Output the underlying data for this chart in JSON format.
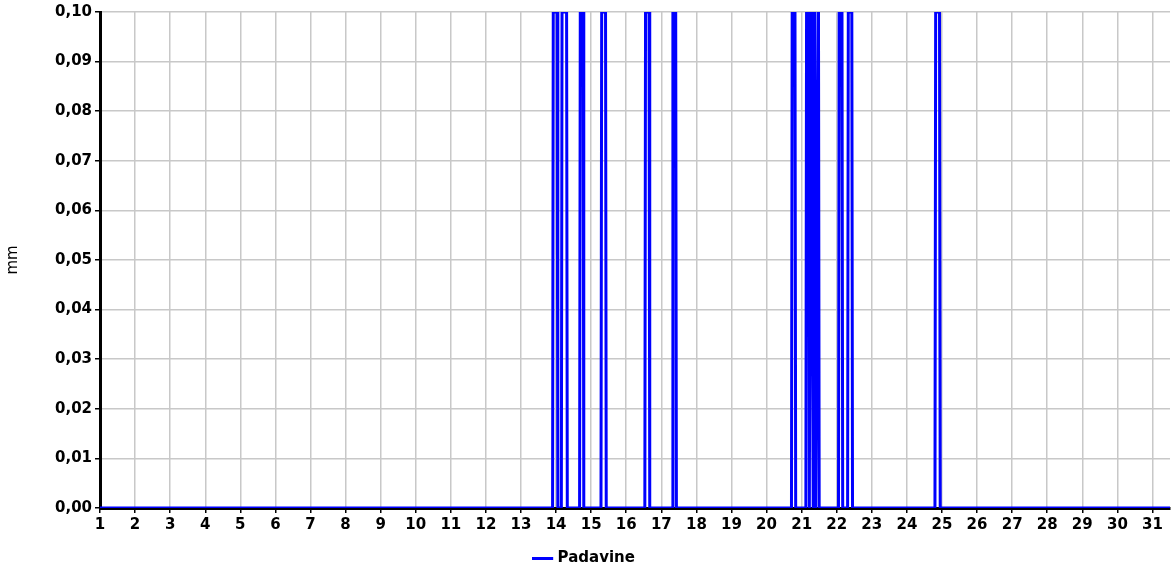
{
  "chart_data": {
    "type": "line",
    "ylabel": "mm",
    "xlim": [
      1,
      31.5
    ],
    "ylim": [
      0,
      0.1
    ],
    "xticks": [
      1,
      2,
      3,
      4,
      5,
      6,
      7,
      8,
      9,
      10,
      11,
      12,
      13,
      14,
      15,
      16,
      17,
      18,
      19,
      20,
      21,
      22,
      23,
      24,
      25,
      26,
      27,
      28,
      29,
      30,
      31
    ],
    "yticks": [
      {
        "value": 0,
        "label": "0,00"
      },
      {
        "value": 0.01,
        "label": "0,01"
      },
      {
        "value": 0.02,
        "label": "0,02"
      },
      {
        "value": 0.03,
        "label": "0,03"
      },
      {
        "value": 0.04,
        "label": "0,04"
      },
      {
        "value": 0.05,
        "label": "0,05"
      },
      {
        "value": 0.06,
        "label": "0,06"
      },
      {
        "value": 0.07,
        "label": "0,07"
      },
      {
        "value": 0.08,
        "label": "0,08"
      },
      {
        "value": 0.09,
        "label": "0,09"
      },
      {
        "value": 0.1,
        "label": "0,10"
      }
    ],
    "grid": true,
    "legend": "bottom",
    "marker": "none",
    "line_style": "solid",
    "series": [
      {
        "name": "Padavine",
        "color": "#0000ff",
        "x": [
          1,
          13.9,
          13.92,
          14.03,
          14.05,
          14.15,
          14.17,
          14.3,
          14.32,
          14.67,
          14.69,
          14.77,
          14.79,
          15.28,
          15.3,
          15.41,
          15.43,
          16.53,
          16.55,
          16.65,
          16.67,
          17.31,
          17.33,
          17.41,
          17.43,
          20.71,
          20.73,
          20.81,
          20.83,
          21.12,
          21.14,
          21.2,
          21.22,
          21.25,
          21.27,
          21.33,
          21.35,
          21.38,
          21.4,
          21.48,
          21.5,
          22.05,
          22.07,
          22.15,
          22.17,
          22.31,
          22.33,
          22.43,
          22.45,
          24.8,
          24.82,
          24.93,
          24.95,
          31.5
        ],
        "values": [
          0,
          0,
          0.1,
          0.1,
          0,
          0,
          0.1,
          0.1,
          0,
          0,
          0.1,
          0.1,
          0,
          0,
          0.1,
          0.1,
          0,
          0,
          0.1,
          0.1,
          0,
          0,
          0.1,
          0.1,
          0,
          0,
          0.1,
          0.1,
          0,
          0,
          0.1,
          0.1,
          0,
          0.1,
          0.1,
          0,
          0.1,
          0.1,
          0,
          0.1,
          0,
          0,
          0.1,
          0.1,
          0,
          0,
          0.1,
          0.1,
          0,
          0,
          0.1,
          0.1,
          0,
          0
        ]
      }
    ]
  }
}
